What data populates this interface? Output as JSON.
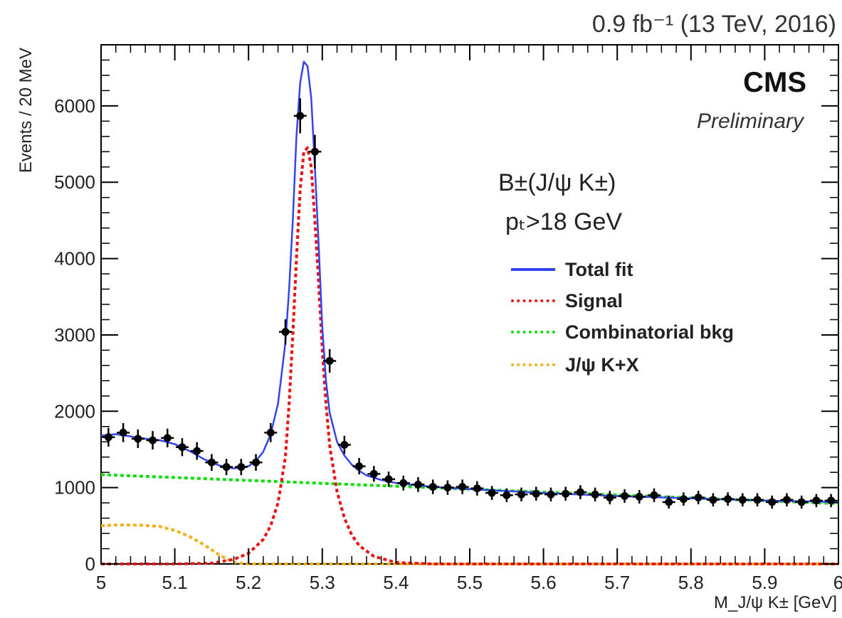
{
  "header": {
    "luminosity": "0.9 fb⁻¹ (13 TeV, 2016)",
    "experiment": "CMS",
    "status": "Preliminary",
    "process": "B±(J/ψ K±)",
    "cut": "pₜ>18 GeV"
  },
  "colors": {
    "total": "#3344ee",
    "signal": "#ee1111",
    "combinatorial": "#11dd11",
    "jpsikx": "#f2b11c",
    "data": "#000000"
  },
  "chart_data": {
    "type": "scatter",
    "xlabel": "M_J/ψ K± [GeV]",
    "ylabel": "Events / 20 MeV",
    "xlim": [
      5.0,
      6.0
    ],
    "ylim": [
      0,
      6800
    ],
    "xticks": [
      "5",
      "5.1",
      "5.2",
      "5.3",
      "5.4",
      "5.5",
      "5.6",
      "5.7",
      "5.8",
      "5.9",
      "6"
    ],
    "yticks": [
      "0",
      "1000",
      "2000",
      "3000",
      "4000",
      "5000",
      "6000"
    ],
    "grid": false,
    "legend": {
      "placement": "right"
    },
    "series": [
      {
        "name": "Data",
        "style": "points",
        "x": [
          5.01,
          5.03,
          5.05,
          5.07,
          5.09,
          5.11,
          5.13,
          5.15,
          5.17,
          5.19,
          5.21,
          5.23,
          5.25,
          5.27,
          5.29,
          5.31,
          5.33,
          5.35,
          5.37,
          5.39,
          5.41,
          5.43,
          5.45,
          5.47,
          5.49,
          5.51,
          5.53,
          5.55,
          5.57,
          5.59,
          5.61,
          5.63,
          5.65,
          5.67,
          5.69,
          5.71,
          5.73,
          5.75,
          5.77,
          5.79,
          5.81,
          5.83,
          5.85,
          5.87,
          5.89,
          5.91,
          5.93,
          5.95,
          5.97,
          5.99
        ],
        "y": [
          1660,
          1720,
          1640,
          1620,
          1650,
          1530,
          1480,
          1330,
          1270,
          1270,
          1330,
          1720,
          3040,
          5870,
          5400,
          2660,
          1560,
          1280,
          1180,
          1110,
          1060,
          1040,
          1010,
          1000,
          1010,
          990,
          930,
          900,
          910,
          920,
          910,
          920,
          940,
          910,
          870,
          890,
          880,
          900,
          810,
          850,
          870,
          840,
          850,
          840,
          840,
          810,
          840,
          810,
          830,
          830
        ]
      },
      {
        "name": "Total fit",
        "style": "solid",
        "x": [
          5.0,
          5.02,
          5.04,
          5.06,
          5.08,
          5.1,
          5.12,
          5.14,
          5.16,
          5.18,
          5.2,
          5.21,
          5.22,
          5.23,
          5.24,
          5.25,
          5.255,
          5.26,
          5.265,
          5.27,
          5.275,
          5.28,
          5.285,
          5.29,
          5.295,
          5.3,
          5.305,
          5.31,
          5.32,
          5.33,
          5.34,
          5.35,
          5.36,
          5.38,
          5.4,
          5.45,
          5.5,
          5.6,
          5.7,
          5.8,
          5.9,
          6.0
        ],
        "y": [
          1680,
          1700,
          1670,
          1640,
          1620,
          1570,
          1480,
          1370,
          1290,
          1250,
          1280,
          1350,
          1470,
          1700,
          2100,
          2900,
          3600,
          4500,
          5600,
          6300,
          6580,
          6520,
          6100,
          5200,
          4200,
          3100,
          2400,
          1980,
          1600,
          1420,
          1300,
          1220,
          1160,
          1100,
          1060,
          1010,
          980,
          930,
          890,
          860,
          830,
          810
        ]
      },
      {
        "name": "Signal",
        "style": "dashed",
        "x": [
          5.0,
          5.1,
          5.15,
          5.18,
          5.2,
          5.22,
          5.23,
          5.24,
          5.25,
          5.255,
          5.26,
          5.265,
          5.27,
          5.275,
          5.28,
          5.285,
          5.29,
          5.295,
          5.3,
          5.305,
          5.31,
          5.32,
          5.33,
          5.34,
          5.35,
          5.37,
          5.4,
          5.45,
          5.5,
          6.0
        ],
        "y": [
          0,
          0,
          10,
          60,
          140,
          320,
          500,
          800,
          1400,
          2100,
          3000,
          4000,
          4900,
          5400,
          5450,
          5200,
          4500,
          3700,
          2800,
          2100,
          1550,
          950,
          600,
          380,
          240,
          100,
          20,
          0,
          0,
          0
        ]
      },
      {
        "name": "Combinatorial bkg",
        "style": "dashed",
        "x": [
          5.0,
          6.0
        ],
        "y": [
          1170,
          790
        ]
      },
      {
        "name": "J/ψ K+X",
        "style": "dashed",
        "x": [
          5.0,
          5.02,
          5.04,
          5.06,
          5.08,
          5.1,
          5.12,
          5.14,
          5.16,
          5.18,
          5.2,
          5.25,
          6.0
        ],
        "y": [
          500,
          510,
          510,
          505,
          490,
          440,
          360,
          250,
          120,
          20,
          0,
          0,
          0
        ]
      }
    ]
  }
}
